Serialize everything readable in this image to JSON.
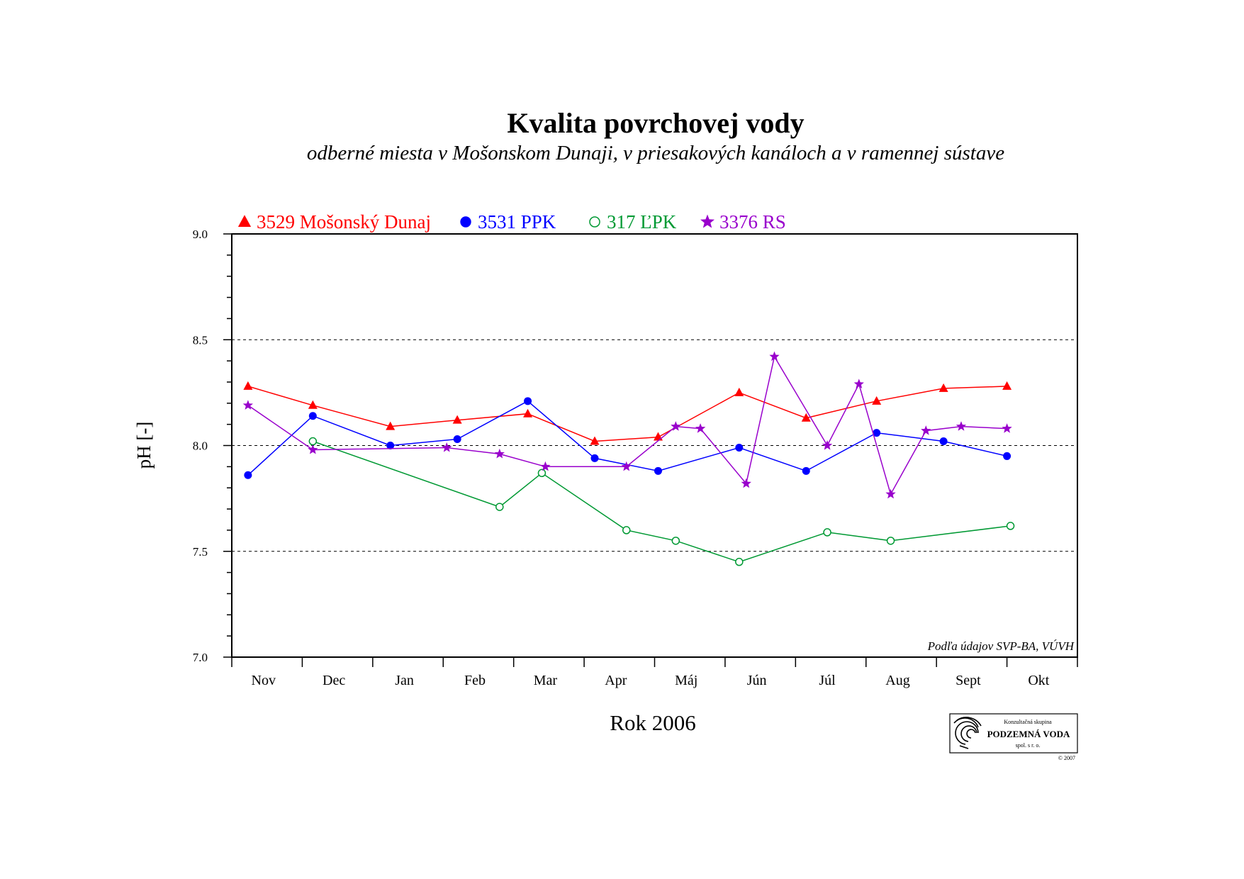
{
  "chart_data": {
    "type": "line",
    "title": "Kvalita povrchovej vody",
    "subtitle": "odberné miesta v Mošonskom Dunaji, v priesakových kanáloch a v ramennej sústave",
    "ylabel": "pH [-]",
    "xlabel": "Rok 2006",
    "ylim": [
      7.0,
      9.0
    ],
    "yticks": [
      "7.0",
      "7.5",
      "8.0",
      "8.5",
      "9.0"
    ],
    "ygrid": [
      7.5,
      8.0,
      8.5
    ],
    "xlim": [
      0,
      12
    ],
    "categories": [
      "Nov",
      "Dec",
      "Jan",
      "Feb",
      "Mar",
      "Apr",
      "Máj",
      "Jún",
      "Júl",
      "Aug",
      "Sept",
      "Okt"
    ],
    "legend_position": "top-left",
    "series": [
      {
        "name": "3529 Mošonský Dunaj",
        "color": "#ff0000",
        "marker": "triangle",
        "x": [
          0.23,
          1.15,
          2.25,
          3.2,
          4.2,
          5.15,
          6.05,
          7.2,
          8.15,
          9.15,
          10.1,
          11.0
        ],
        "y": [
          8.28,
          8.19,
          8.09,
          8.12,
          8.15,
          8.02,
          8.04,
          8.25,
          8.13,
          8.21,
          8.27,
          8.28
        ]
      },
      {
        "name": "3531 PPK",
        "color": "#0000ff",
        "marker": "circle",
        "x": [
          0.23,
          1.15,
          2.25,
          3.2,
          4.2,
          5.15,
          6.05,
          7.2,
          8.15,
          9.15,
          10.1,
          11.0
        ],
        "y": [
          7.86,
          8.14,
          8.0,
          8.03,
          8.21,
          7.94,
          7.88,
          7.99,
          7.88,
          8.06,
          8.02,
          7.95
        ]
      },
      {
        "name": "317 ĽPK",
        "color": "#009933",
        "marker": "open-circle",
        "x": [
          1.15,
          3.8,
          4.4,
          5.6,
          6.3,
          7.2,
          8.45,
          9.35,
          11.05
        ],
        "y": [
          8.02,
          7.71,
          7.87,
          7.6,
          7.55,
          7.45,
          7.59,
          7.55,
          7.62
        ]
      },
      {
        "name": "3376 RS",
        "color": "#9900cc",
        "marker": "star",
        "x": [
          0.23,
          1.15,
          3.05,
          3.8,
          4.45,
          5.6,
          6.3,
          6.65,
          7.3,
          7.7,
          8.45,
          8.9,
          9.35,
          9.85,
          10.35,
          11.0
        ],
        "y": [
          8.19,
          7.98,
          7.99,
          7.96,
          7.9,
          7.9,
          8.09,
          8.08,
          7.82,
          8.42,
          8.0,
          8.29,
          7.77,
          8.07,
          8.09,
          8.08
        ]
      }
    ],
    "annotation": "Podľa údajov SVP-BA, VÚVH"
  },
  "logo": {
    "top_text": "Konzultačná skupina",
    "name": "PODZEMNÁ VODA",
    "suffix": "spol. s r. o.",
    "copyright": "© 2007"
  }
}
